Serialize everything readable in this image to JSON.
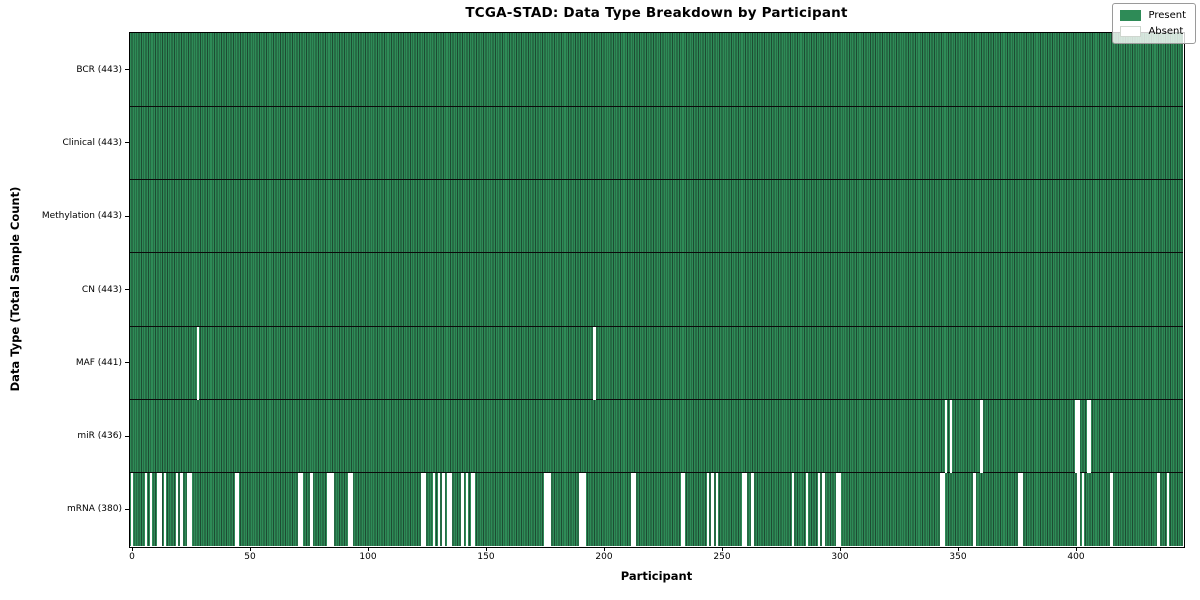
{
  "chart_data": {
    "type": "heatmap",
    "title": "TCGA-STAD: Data Type Breakdown by Participant",
    "xlabel": "Participant",
    "ylabel": "Data Type (Total Sample Count)",
    "x_ticks": [
      0,
      50,
      100,
      150,
      200,
      250,
      300,
      350,
      400
    ],
    "n_participants": 443,
    "grid": false,
    "legend": {
      "position": "upper right",
      "entries": [
        {
          "label": "Present",
          "color": "#2e8b57"
        },
        {
          "label": "Absent",
          "color": "#ffffff"
        }
      ]
    },
    "colors": {
      "present": "#2e8b57",
      "present_edge": "#1d4c33",
      "absent": "#ffffff",
      "row_separator": "#0b0b0b",
      "axis": "#000000"
    },
    "rows": [
      {
        "label": "BCR (443)",
        "name": "BCR",
        "total": 443,
        "absent_participants": []
      },
      {
        "label": "Clinical (443)",
        "name": "Clinical",
        "total": 443,
        "absent_participants": []
      },
      {
        "label": "Methylation (443)",
        "name": "Methylation",
        "total": 443,
        "absent_participants": []
      },
      {
        "label": "CN (443)",
        "name": "CN",
        "total": 443,
        "absent_participants": []
      },
      {
        "label": "MAF (441)",
        "name": "MAF",
        "total": 441,
        "absent_participants": [
          28,
          196
        ]
      },
      {
        "label": "miR (436)",
        "name": "miR",
        "total": 436,
        "absent_participants": [
          345,
          347,
          360,
          400,
          401,
          405,
          406
        ]
      },
      {
        "label": "mRNA (380)",
        "name": "mRNA",
        "total": 380,
        "absent_participants": [
          0,
          6,
          8,
          11,
          12,
          14,
          19,
          21,
          24,
          25,
          44,
          45,
          71,
          72,
          76,
          83,
          84,
          85,
          92,
          93,
          123,
          124,
          128,
          130,
          132,
          134,
          135,
          140,
          142,
          144,
          145,
          175,
          176,
          177,
          190,
          191,
          192,
          212,
          213,
          233,
          234,
          244,
          246,
          248,
          259,
          260,
          263,
          280,
          286,
          291,
          293,
          299,
          300,
          343,
          344,
          357,
          376,
          377,
          401,
          403,
          415,
          435,
          439
        ]
      }
    ]
  }
}
